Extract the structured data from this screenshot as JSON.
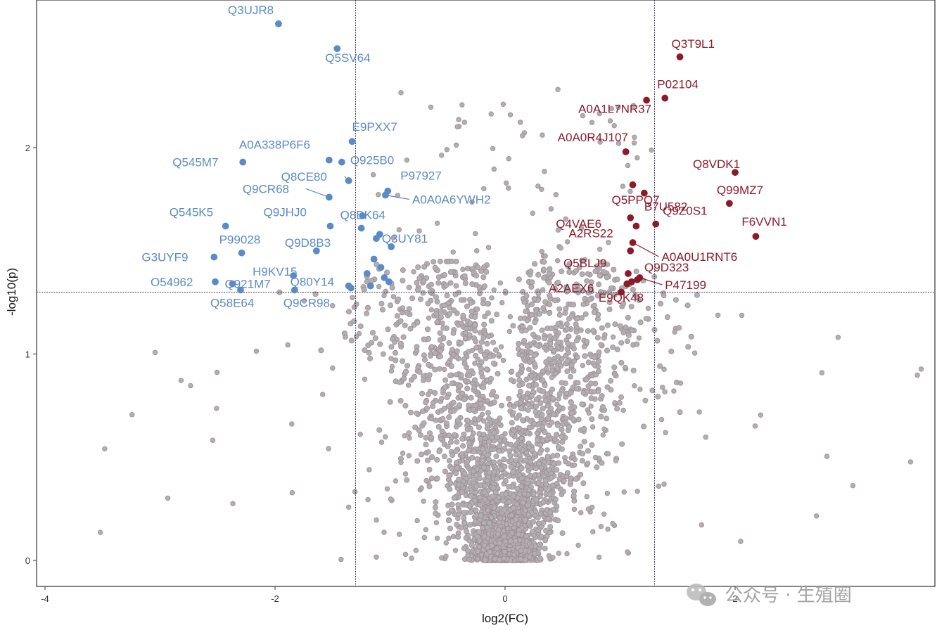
{
  "chart_data": {
    "type": "scatter",
    "title": "",
    "xlabel": "log2(FC)",
    "ylabel": "-log10(p)",
    "xlim": [
      -4.1,
      3.7
    ],
    "ylim": [
      -0.12,
      2.7
    ],
    "xticks": [
      -4,
      -2,
      0,
      2
    ],
    "yticks": [
      0,
      1,
      2
    ],
    "thresholds": {
      "x": [
        -1.3,
        1.3
      ],
      "y": 1.3
    },
    "grid": false,
    "colors": {
      "down": "#5b8ac6",
      "up": "#8b1a2b",
      "ns": "#b0b0b0",
      "ns_edge": "#a08a96",
      "threshold": "#333355"
    },
    "down_regulated": [
      {
        "label": "Q3UJR8",
        "x": -1.97,
        "y": 2.6
      },
      {
        "label": "Q5SV64",
        "x": -1.46,
        "y": 2.48
      },
      {
        "label": "E9PXX7",
        "x": -1.33,
        "y": 2.03
      },
      {
        "label": "A0A338P6F6",
        "x": -1.53,
        "y": 1.94
      },
      {
        "label": "Q925B0",
        "x": -1.42,
        "y": 1.93
      },
      {
        "label": "Q545M7",
        "x": -2.28,
        "y": 1.93
      },
      {
        "label": "Q8CE80",
        "x": -1.36,
        "y": 1.84
      },
      {
        "label": "P97927",
        "x": -1.02,
        "y": 1.79
      },
      {
        "label": "Q9CR68",
        "x": -1.53,
        "y": 1.76
      },
      {
        "label": "A0A0A6YWH2",
        "x": -1.04,
        "y": 1.77
      },
      {
        "label": "Q545K5",
        "x": -2.43,
        "y": 1.62
      },
      {
        "label": "Q9JHJ0",
        "x": -1.52,
        "y": 1.62
      },
      {
        "label": "Q8BK64",
        "x": -1.25,
        "y": 1.61
      },
      {
        "label": "P99028",
        "x": -2.29,
        "y": 1.49
      },
      {
        "label": "Q9D8B3",
        "x": -1.64,
        "y": 1.5
      },
      {
        "label": "Q3UY81",
        "x": -1.12,
        "y": 1.56
      },
      {
        "label": "G3UYF9",
        "x": -2.53,
        "y": 1.47
      },
      {
        "label": "H9KV15",
        "x": -1.84,
        "y": 1.38
      },
      {
        "label": "Q80Y14",
        "x": -1.36,
        "y": 1.33
      },
      {
        "label": "O54962",
        "x": -2.52,
        "y": 1.35
      },
      {
        "label": "Q921M7",
        "x": -2.37,
        "y": 1.34
      },
      {
        "label": "Q58E64",
        "x": -2.3,
        "y": 1.31
      },
      {
        "label": "Q9CR98",
        "x": -1.83,
        "y": 1.31
      }
    ],
    "down_unlabeled": [
      {
        "x": -1.34,
        "y": 1.32
      },
      {
        "x": -1.08,
        "y": 1.42
      },
      {
        "x": -1.01,
        "y": 1.35
      },
      {
        "x": -1.14,
        "y": 1.46
      },
      {
        "x": -1.2,
        "y": 1.39
      },
      {
        "x": -0.99,
        "y": 1.52
      },
      {
        "x": -1.05,
        "y": 1.37
      },
      {
        "x": -1.24,
        "y": 1.67
      },
      {
        "x": -1.17,
        "y": 1.33
      },
      {
        "x": -1.09,
        "y": 1.58
      }
    ],
    "up_regulated": [
      {
        "label": "Q3T9L1",
        "x": 1.52,
        "y": 2.44
      },
      {
        "label": "P02104",
        "x": 1.39,
        "y": 2.24
      },
      {
        "label": "A0A1L7NR37",
        "x": 1.23,
        "y": 2.23
      },
      {
        "label": "A0A0R4J107",
        "x": 1.05,
        "y": 1.98
      },
      {
        "label": "Q8VDK1",
        "x": 2.0,
        "y": 1.88
      },
      {
        "label": "Q5PPQ7",
        "x": 1.11,
        "y": 1.82
      },
      {
        "label": "Q99MZ7",
        "x": 1.95,
        "y": 1.73
      },
      {
        "label": "B7U582",
        "x": 1.21,
        "y": 1.78
      },
      {
        "label": "Q4VAE6",
        "x": 1.09,
        "y": 1.66
      },
      {
        "label": "Q9Z0S1",
        "x": 1.31,
        "y": 1.63
      },
      {
        "label": "F6VVN1",
        "x": 2.18,
        "y": 1.57
      },
      {
        "label": "A2RS22",
        "x": 1.14,
        "y": 1.62
      },
      {
        "label": "A0A0U1RNT6",
        "x": 1.11,
        "y": 1.54
      },
      {
        "label": "Q5BLJ9",
        "x": 1.07,
        "y": 1.39
      },
      {
        "label": "Q9D323",
        "x": 1.15,
        "y": 1.36
      },
      {
        "label": "P47199",
        "x": 1.17,
        "y": 1.37
      },
      {
        "label": "A2AEX6",
        "x": 1.01,
        "y": 1.3
      },
      {
        "label": "E9QK48",
        "x": 1.1,
        "y": 1.35
      }
    ],
    "up_unlabeled": [
      {
        "x": 1.09,
        "y": 1.5
      },
      {
        "x": 1.06,
        "y": 1.34
      }
    ]
  },
  "watermark": {
    "text": "公众号 · 生殖圈",
    "icon": "wechat-icon"
  }
}
